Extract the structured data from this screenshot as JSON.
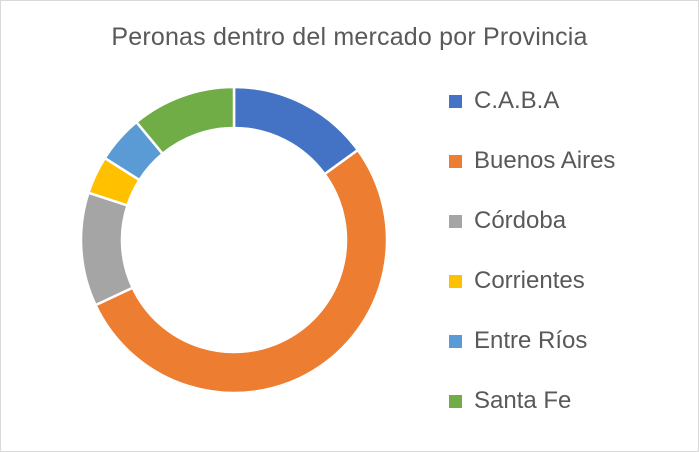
{
  "chart_data": {
    "type": "doughnut",
    "title": "Peronas dentro del mercado por Provincia",
    "legend_position": "right",
    "categories": [
      "C.A.B.A",
      "Buenos Aires",
      "Córdoba",
      "Corrientes",
      "Entre Ríos",
      "Santa Fe"
    ],
    "values": [
      15,
      53,
      12,
      4,
      5,
      11
    ],
    "colors": [
      "#4472C4",
      "#ED7D31",
      "#A5A5A5",
      "#FFC000",
      "#5B9BD5",
      "#70AD47"
    ]
  }
}
